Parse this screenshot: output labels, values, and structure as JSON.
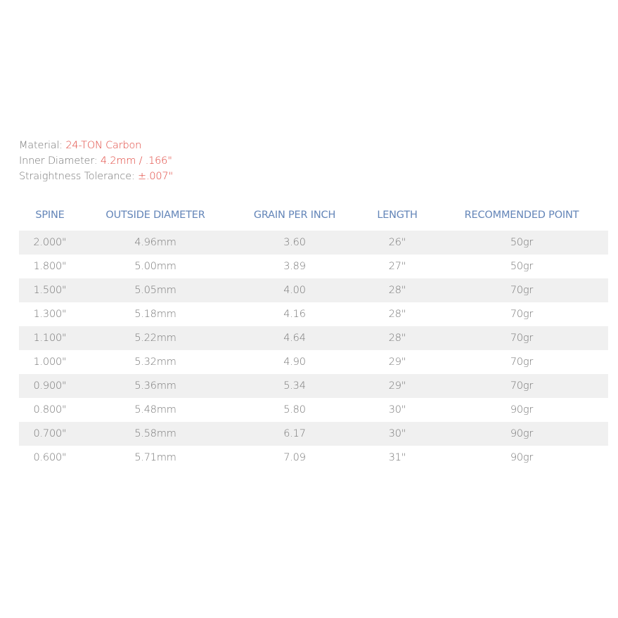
{
  "specs": [
    {
      "label": "Material: ",
      "value": "24-TON Carbon"
    },
    {
      "label": "Inner Diameter: ",
      "value": "4.2mm / .166\""
    },
    {
      "label": "Straightness Tolerance: ",
      "value": "±.007\""
    }
  ],
  "colors": {
    "accent": "#e0453d",
    "header": "#6385b8",
    "text": "#777777",
    "stripe": "#f0f0f0"
  },
  "table": {
    "headers": [
      "SPINE",
      "OUTSIDE DIAMETER",
      "GRAIN PER INCH",
      "LENGTH",
      "RECOMMENDED POINT"
    ],
    "rows": [
      [
        "2.000\"",
        "4.96mm",
        "3.60",
        "26\"",
        "50gr"
      ],
      [
        "1.800\"",
        "5.00mm",
        "3.89",
        "27\"",
        "50gr"
      ],
      [
        "1.500\"",
        "5.05mm",
        "4.00",
        "28\"",
        "70gr"
      ],
      [
        "1.300\"",
        "5.18mm",
        "4.16",
        "28\"",
        "70gr"
      ],
      [
        "1.100\"",
        "5.22mm",
        "4.64",
        "28\"",
        "70gr"
      ],
      [
        "1.000\"",
        "5.32mm",
        "4.90",
        "29\"",
        "70gr"
      ],
      [
        "0.900\"",
        "5.36mm",
        "5.34",
        "29\"",
        "70gr"
      ],
      [
        "0.800\"",
        "5.48mm",
        "5.80",
        "30\"",
        "90gr"
      ],
      [
        "0.700\"",
        "5.58mm",
        "6.17",
        "30\"",
        "90gr"
      ],
      [
        "0.600\"",
        "5.71mm",
        "7.09",
        "31\"",
        "90gr"
      ]
    ]
  }
}
